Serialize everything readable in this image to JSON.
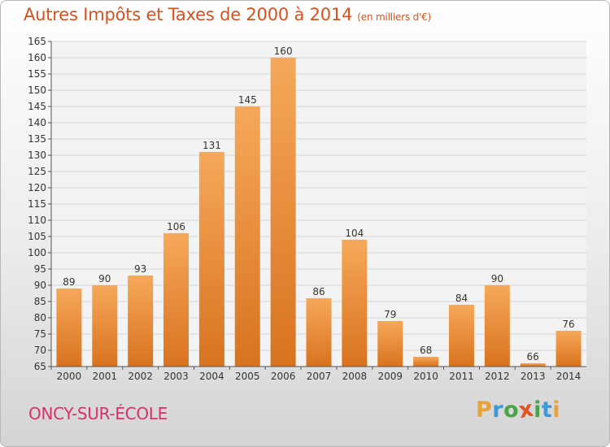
{
  "header": {
    "title": "Autres Impôts et Taxes de 2000 à 2014",
    "unit": "(en milliers d'€)"
  },
  "footer": {
    "city": "ONCY-SUR-ÉCOLE",
    "brand": "Proxiti"
  },
  "colors": {
    "bar_light": "#f6a85a",
    "bar_dark": "#d8731f",
    "title": "#d4521f",
    "city": "#d8306a"
  },
  "chart_data": {
    "type": "bar",
    "categories": [
      "2000",
      "2001",
      "2002",
      "2003",
      "2004",
      "2005",
      "2006",
      "2007",
      "2008",
      "2009",
      "2010",
      "2011",
      "2012",
      "2013",
      "2014"
    ],
    "values": [
      89,
      90,
      93,
      106,
      131,
      145,
      160,
      86,
      104,
      79,
      68,
      84,
      90,
      66,
      76
    ],
    "title": "Autres Impôts et Taxes de 2000 à 2014",
    "ylim": [
      65,
      165
    ],
    "ytick_step": 5,
    "grid": true,
    "data_labels": true
  }
}
